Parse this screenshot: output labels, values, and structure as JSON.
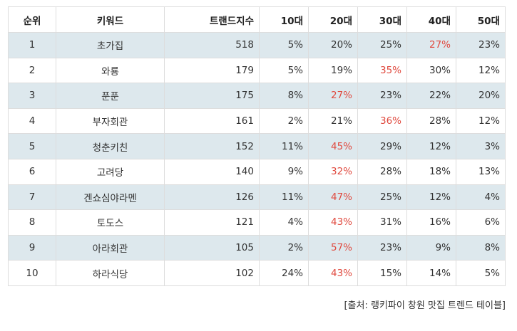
{
  "table": {
    "headers": [
      "순위",
      "키워드",
      "트랜드지수",
      "10대",
      "20대",
      "30대",
      "40대",
      "50대"
    ],
    "rows": [
      {
        "rank": "1",
        "keyword": "초가집",
        "index": "518",
        "ages": [
          "5%",
          "20%",
          "25%",
          "27%",
          "23%"
        ],
        "highlight_col": 3
      },
      {
        "rank": "2",
        "keyword": "와룡",
        "index": "179",
        "ages": [
          "5%",
          "19%",
          "35%",
          "30%",
          "12%"
        ],
        "highlight_col": 2
      },
      {
        "rank": "3",
        "keyword": "푼푼",
        "index": "175",
        "ages": [
          "8%",
          "27%",
          "23%",
          "22%",
          "20%"
        ],
        "highlight_col": 1
      },
      {
        "rank": "4",
        "keyword": "부자회관",
        "index": "161",
        "ages": [
          "2%",
          "21%",
          "36%",
          "28%",
          "12%"
        ],
        "highlight_col": 2
      },
      {
        "rank": "5",
        "keyword": "청춘키친",
        "index": "152",
        "ages": [
          "11%",
          "45%",
          "29%",
          "12%",
          "3%"
        ],
        "highlight_col": 1
      },
      {
        "rank": "6",
        "keyword": "고려당",
        "index": "140",
        "ages": [
          "9%",
          "32%",
          "28%",
          "18%",
          "13%"
        ],
        "highlight_col": 1
      },
      {
        "rank": "7",
        "keyword": "겐쇼심야라멘",
        "index": "126",
        "ages": [
          "11%",
          "47%",
          "25%",
          "12%",
          "4%"
        ],
        "highlight_col": 1
      },
      {
        "rank": "8",
        "keyword": "토도스",
        "index": "121",
        "ages": [
          "4%",
          "43%",
          "31%",
          "16%",
          "6%"
        ],
        "highlight_col": 1
      },
      {
        "rank": "9",
        "keyword": "아라회관",
        "index": "105",
        "ages": [
          "2%",
          "57%",
          "23%",
          "9%",
          "8%"
        ],
        "highlight_col": 1
      },
      {
        "rank": "10",
        "keyword": "하라식당",
        "index": "102",
        "ages": [
          "24%",
          "43%",
          "15%",
          "14%",
          "5%"
        ],
        "highlight_col": 1
      }
    ]
  },
  "source": "[출처: 랭키파이 창원 맛집 트렌드 테이블]",
  "colors": {
    "row_shade": "#dde8ed",
    "highlight_text": "#e04a3f",
    "border": "#dddddd"
  }
}
